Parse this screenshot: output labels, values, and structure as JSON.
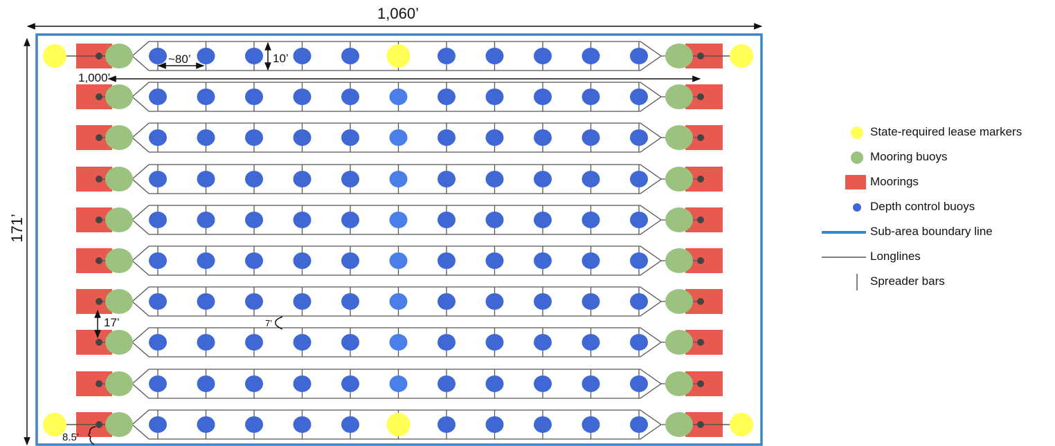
{
  "dimensions": {
    "width_label": "1,060’",
    "height_label": "171’",
    "spacing_label": "~80’",
    "drop_label": "10’",
    "longline_label": "1,000’",
    "row_gap_label": "17’",
    "pair_gap_label": "7’",
    "end_offset_label": "8.5’"
  },
  "layout": {
    "row_count": 10,
    "depth_buoys_per_row": 11,
    "highlighted_buoy_column": 5,
    "lease_marker_rows": [
      0,
      9
    ],
    "top_row_marker_replaces_column": 5,
    "bottom_row_marker_replaces_column": 5
  },
  "legend": [
    {
      "id": "lease-marker",
      "icon": "yellow-circle-icon",
      "label": "State-required lease markers"
    },
    {
      "id": "mooring-buoy",
      "icon": "green-circle-icon",
      "label": "Mooring buoys"
    },
    {
      "id": "mooring",
      "icon": "red-rectangle-icon",
      "label": "Moorings"
    },
    {
      "id": "depth-buoy",
      "icon": "blue-dot-icon",
      "label": "Depth control buoys"
    },
    {
      "id": "boundary",
      "icon": "blue-line-icon",
      "label": "Sub-area boundary line"
    },
    {
      "id": "longline",
      "icon": "gray-line-icon",
      "label": "Longlines"
    },
    {
      "id": "spreader",
      "icon": "vertical-bar-icon",
      "label": "Spreader bars"
    }
  ],
  "colors": {
    "lease_marker": "#ffff55",
    "mooring_buoy": "#9bc27f",
    "mooring": "#e8594f",
    "depth_buoy": "#3f68d4",
    "depth_buoy_highlight": "#4a7ee8",
    "boundary": "#3d85c6",
    "longline": "#555555",
    "anchor_dot": "#444444"
  }
}
